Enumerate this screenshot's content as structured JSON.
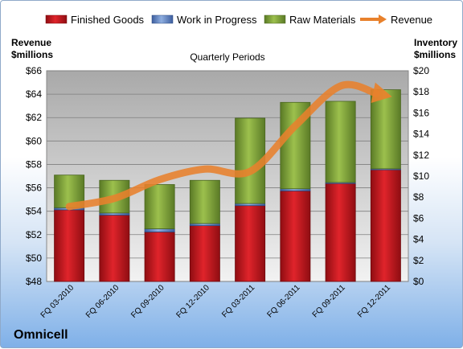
{
  "company": "Omnicell",
  "chart_data": {
    "type": "bar",
    "stacked": true,
    "title": "Quarterly Periods",
    "categories": [
      "FQ 03-2010",
      "FQ 06-2010",
      "FQ 09-2010",
      "FQ 12-2010",
      "FQ 03-2011",
      "FQ 06-2011",
      "FQ 09-2011",
      "FQ 12-2011"
    ],
    "left_axis": {
      "label_line1": "Revenue",
      "label_line2": "$millions",
      "min": 48,
      "max": 66,
      "step": 2,
      "prefix": "$"
    },
    "right_axis": {
      "label_line1": "Inventory",
      "label_line2": "$millions",
      "min": 0,
      "max": 20,
      "step": 2,
      "prefix": "$"
    },
    "series": [
      {
        "name": "Finished Goods",
        "axis": "right",
        "color": "#c0151b",
        "values": [
          6.8,
          6.3,
          4.7,
          5.3,
          7.2,
          8.6,
          9.3,
          10.6
        ]
      },
      {
        "name": "Work in Progress",
        "axis": "right",
        "color": "#5b7fc0",
        "values": [
          0.2,
          0.2,
          0.3,
          0.2,
          0.2,
          0.2,
          0.1,
          0.1
        ]
      },
      {
        "name": "Raw Materials",
        "axis": "right",
        "color": "#7fa33a",
        "values": [
          3.1,
          3.1,
          4.2,
          4.1,
          8.1,
          8.2,
          7.7,
          7.5
        ]
      },
      {
        "name": "Revenue",
        "axis": "left",
        "type": "line",
        "color": "#e8812c",
        "values": [
          54.4,
          55.1,
          56.7,
          57.6,
          57.4,
          61.3,
          64.7,
          63.9
        ]
      }
    ],
    "legend_position": "top",
    "grid": true
  }
}
